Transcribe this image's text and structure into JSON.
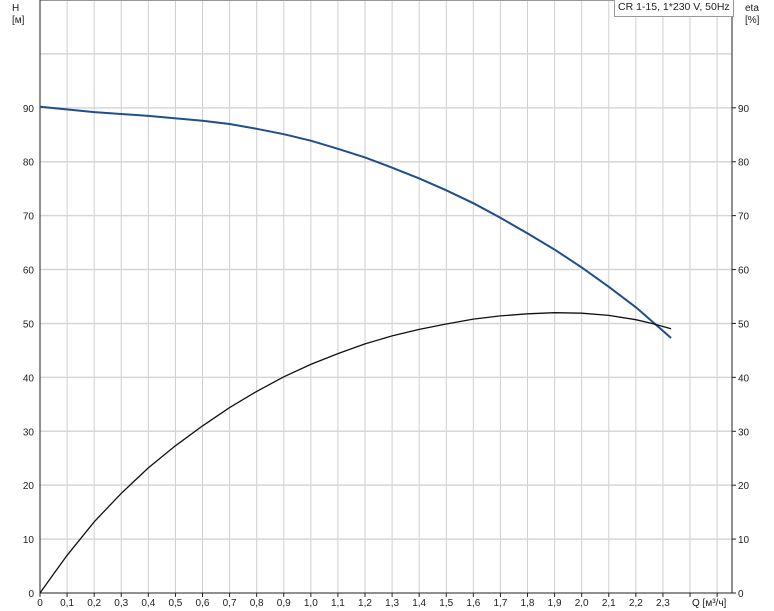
{
  "chart_data": {
    "type": "line",
    "legend_text": "CR 1-15, 1*230 V, 50Hz",
    "legend_placement": "top-right",
    "xlabel": "Q [м³/ч]",
    "ylabel_left": [
      "H",
      "[м]"
    ],
    "ylabel_right": [
      "eta",
      "[%]"
    ],
    "xlim": [
      0,
      2.555
    ],
    "ylim": [
      0,
      110
    ],
    "grid": true,
    "x_ticks": [
      "0",
      "0,1",
      "0,2",
      "0,3",
      "0,4",
      "0,5",
      "0,6",
      "0,7",
      "0,8",
      "0,9",
      "1,0",
      "1,1",
      "1,2",
      "1,3",
      "1,4",
      "1,5",
      "1,6",
      "1,7",
      "1,8",
      "1,9",
      "2,0",
      "2,1",
      "2,2",
      "2,3"
    ],
    "y_ticks": [
      0,
      10,
      20,
      30,
      40,
      50,
      60,
      70,
      80,
      90
    ],
    "series": [
      {
        "axis": "left",
        "color": "#1f4e8c",
        "x": [
          0,
          0.2,
          0.4,
          0.6,
          0.7,
          0.8,
          0.9,
          1.0,
          1.1,
          1.2,
          1.3,
          1.4,
          1.5,
          1.6,
          1.7,
          1.8,
          1.9,
          2.0,
          2.1,
          2.2,
          2.33
        ],
        "y": [
          90.2,
          89.2,
          88.5,
          87.6,
          87,
          86.1,
          85.1,
          83.9,
          82.4,
          80.8,
          78.9,
          76.9,
          74.7,
          72.3,
          69.6,
          66.7,
          63.7,
          60.4,
          56.8,
          53,
          47.3
        ]
      },
      {
        "axis": "right",
        "color": "#111111",
        "x": [
          0,
          0.05,
          0.1,
          0.2,
          0.3,
          0.4,
          0.5,
          0.6,
          0.7,
          0.8,
          0.9,
          1.0,
          1.1,
          1.2,
          1.3,
          1.4,
          1.5,
          1.6,
          1.7,
          1.8,
          1.9,
          2.0,
          2.1,
          2.2,
          2.26,
          2.33
        ],
        "y": [
          0,
          3.5,
          7,
          13.2,
          18.5,
          23.2,
          27.3,
          31,
          34.4,
          37.4,
          40.1,
          42.4,
          44.4,
          46.2,
          47.7,
          48.9,
          49.9,
          50.8,
          51.4,
          51.8,
          52,
          51.9,
          51.5,
          50.7,
          50,
          49
        ]
      }
    ]
  }
}
